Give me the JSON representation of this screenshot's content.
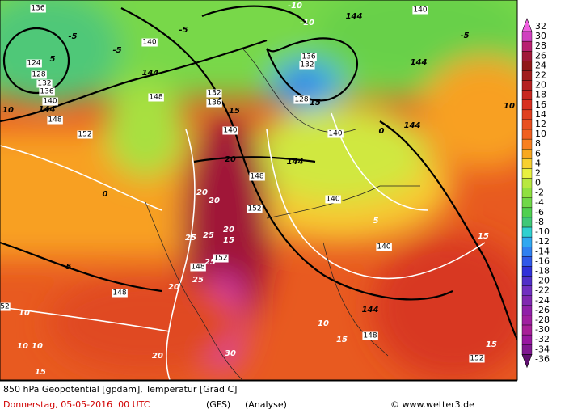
{
  "map": {
    "contour_labels": [
      136,
      -10,
      144,
      140,
      -10,
      -5,
      140,
      -5,
      -5,
      124,
      5,
      128,
      132,
      136,
      140,
      144,
      148,
      10,
      144,
      148,
      132,
      136,
      15,
      136,
      132,
      128,
      15,
      144,
      -5,
      10,
      144,
      0,
      140,
      152,
      140,
      20,
      144,
      148,
      0,
      20,
      20,
      152,
      140,
      5,
      20,
      25,
      25,
      15,
      140,
      15,
      5,
      152,
      25,
      148,
      25,
      20,
      148,
      144,
      10,
      10,
      15,
      148,
      10,
      10,
      20,
      30,
      152,
      15,
      15,
      52
    ]
  },
  "colorbar": {
    "ticks": [
      32,
      30,
      28,
      26,
      24,
      22,
      20,
      18,
      16,
      14,
      12,
      10,
      8,
      6,
      4,
      2,
      0,
      -2,
      -4,
      -6,
      -8,
      -10,
      -12,
      -14,
      -16,
      -18,
      -20,
      -22,
      -24,
      -26,
      -28,
      -30,
      -32,
      -34,
      -36
    ],
    "colors": [
      "#f060e0",
      "#d040c0",
      "#b82070",
      "#a01838",
      "#901818",
      "#a01c1c",
      "#b42020",
      "#c82820",
      "#d83020",
      "#e04020",
      "#e85020",
      "#f06020",
      "#f88020",
      "#f8a820",
      "#f8d030",
      "#e8f040",
      "#b8e840",
      "#90e040",
      "#70d848",
      "#50d050",
      "#40c878",
      "#30d0d0",
      "#30a8f0",
      "#3080f0",
      "#3058e8",
      "#3030d8",
      "#5030c8",
      "#7030c0",
      "#8028b0",
      "#9020a8",
      "#a020a0",
      "#a82098",
      "#9818a0",
      "#801890",
      "#601070"
    ]
  },
  "footer": {
    "title": "850 hPa Geopotential [gpdam], Temperatur [Grad C]",
    "date": "Donnerstag, 05-05-2016  00 UTC",
    "model": "(GFS)",
    "run": "(Analyse)",
    "credit": "© www.wetter3.de"
  }
}
